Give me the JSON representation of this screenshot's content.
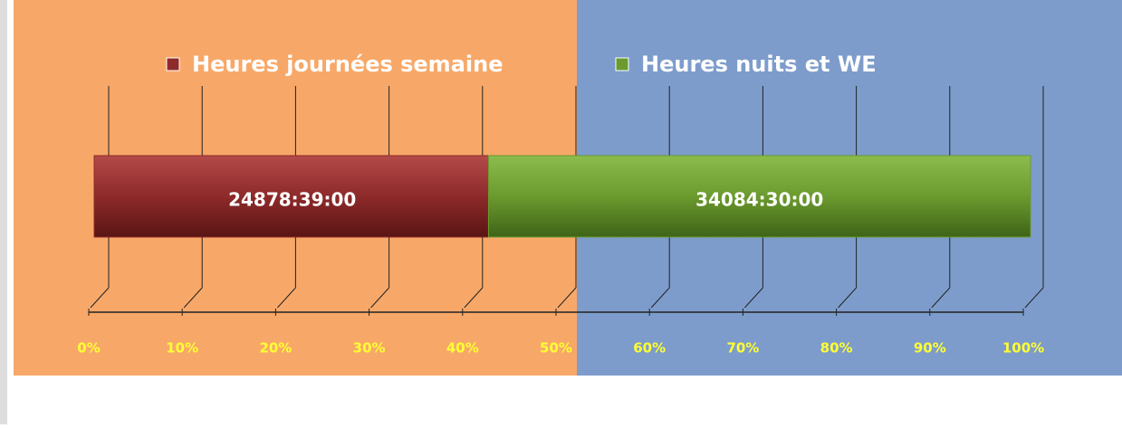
{
  "chart_data": {
    "type": "bar",
    "orientation": "horizontal",
    "stack": "percent",
    "categories": [
      null
    ],
    "series": [
      {
        "name": "Heures journées semaine",
        "color": "#8e2a2a",
        "values": [
          24878.65
        ],
        "value_labels": [
          "24878:39:00"
        ]
      },
      {
        "name": "Heures nuits et WE",
        "color": "#6b9a2e",
        "values": [
          34084.5
        ],
        "value_labels": [
          "34084:30:00"
        ]
      }
    ],
    "xlim": [
      0,
      100
    ],
    "xticks": [
      {
        "value": 0,
        "label": "0%"
      },
      {
        "value": 10,
        "label": "10%"
      },
      {
        "value": 20,
        "label": "20%"
      },
      {
        "value": 30,
        "label": "30%"
      },
      {
        "value": 40,
        "label": "40%"
      },
      {
        "value": 50,
        "label": "50%"
      },
      {
        "value": 60,
        "label": "60%"
      },
      {
        "value": 70,
        "label": "70%"
      },
      {
        "value": 80,
        "label": "80%"
      },
      {
        "value": 90,
        "label": "90%"
      },
      {
        "value": 100,
        "label": "100%"
      }
    ],
    "grid": true,
    "legend": "top"
  }
}
